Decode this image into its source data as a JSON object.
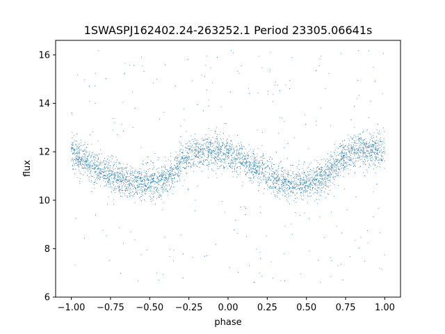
{
  "chart_data": {
    "type": "scatter",
    "title": "1SWASPJ162402.24-263252.1 Period 23305.06641s",
    "xlabel": "phase",
    "ylabel": "flux",
    "xlim": [
      -1.1,
      1.1
    ],
    "ylim": [
      6.0,
      16.6
    ],
    "xticks": [
      -1.0,
      -0.75,
      -0.5,
      -0.25,
      0.0,
      0.25,
      0.5,
      0.75,
      1.0
    ],
    "xtick_labels": [
      "−1.00",
      "−0.75",
      "−0.50",
      "−0.25",
      "0.00",
      "0.25",
      "0.50",
      "0.75",
      "1.00"
    ],
    "yticks": [
      6,
      8,
      10,
      12,
      14,
      16
    ],
    "ytick_labels": [
      "6",
      "8",
      "10",
      "12",
      "14",
      "16"
    ],
    "grid": false,
    "point_color": "#1f77b4",
    "series": [
      {
        "x": [
          -1.0,
          -0.95,
          -0.9,
          -0.85,
          -0.8,
          -0.75,
          -0.7,
          -0.65,
          -0.6,
          -0.55,
          -0.5,
          -0.45,
          -0.4,
          -0.35,
          -0.3,
          -0.25,
          -0.2,
          -0.15,
          -0.1,
          -0.05,
          0.0,
          0.05,
          0.1,
          0.15,
          0.2,
          0.25,
          0.3,
          0.35,
          0.4,
          0.45,
          0.5,
          0.55,
          0.6,
          0.65,
          0.7,
          0.75,
          0.8,
          0.85,
          0.9,
          0.95,
          1.0
        ],
        "y": [
          11.9,
          11.75,
          11.6,
          11.4,
          11.25,
          11.05,
          10.9,
          10.8,
          10.7,
          10.7,
          10.7,
          10.75,
          10.9,
          11.15,
          11.55,
          11.85,
          12.0,
          12.05,
          12.05,
          12.0,
          11.9,
          11.75,
          11.6,
          11.4,
          11.25,
          11.05,
          10.9,
          10.8,
          10.7,
          10.7,
          10.7,
          10.75,
          10.9,
          11.15,
          11.55,
          11.85,
          12.0,
          12.05,
          12.05,
          12.0,
          11.9
        ]
      }
    ]
  }
}
